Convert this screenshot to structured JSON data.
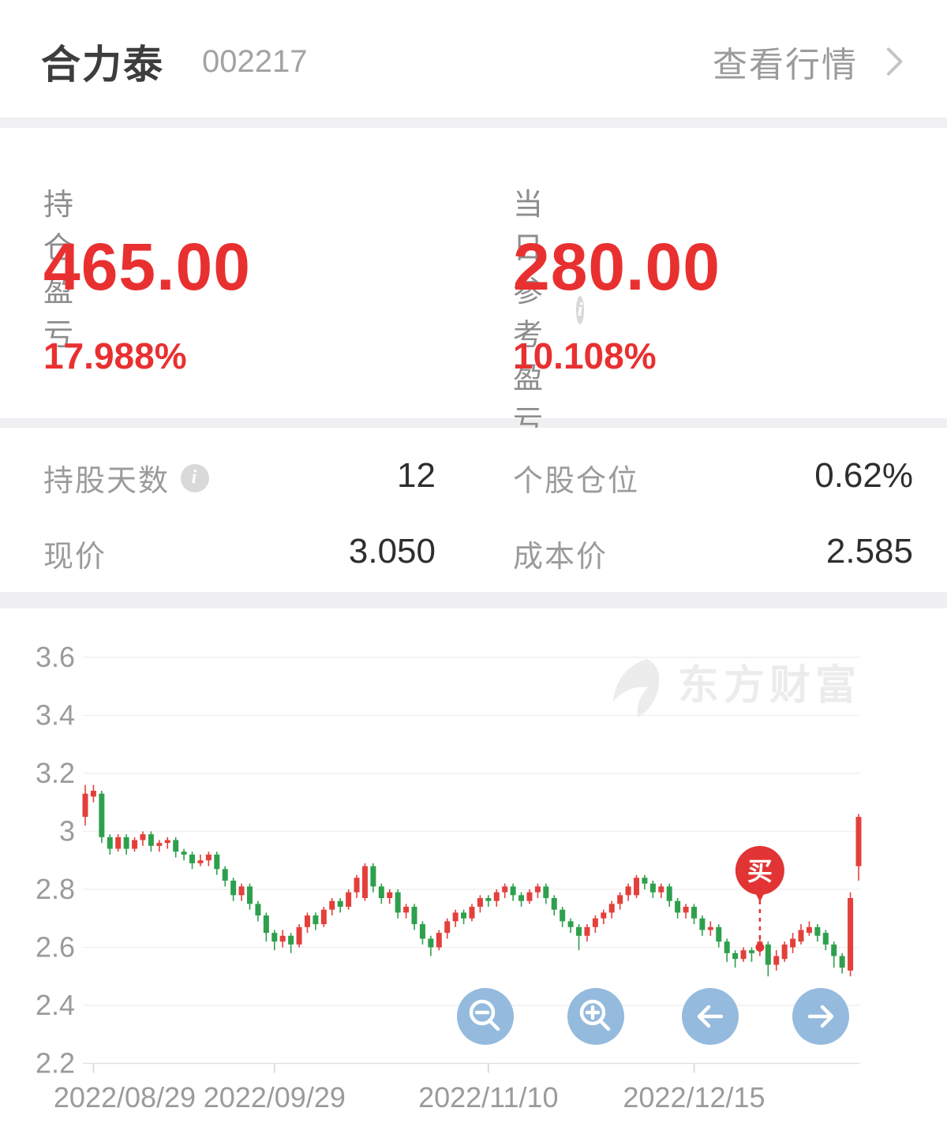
{
  "header": {
    "stock_name": "合力泰",
    "stock_code": "002217",
    "view_quotes_label": "查看行情"
  },
  "icons": {
    "view_quotes_chevron": "chevron-right",
    "info": "info-circle",
    "watermark_logo": "eastmoney-logo",
    "buttons": [
      "magnifier-minus",
      "magnifier-plus",
      "arrow-left",
      "arrow-right"
    ]
  },
  "pnl": {
    "position_label": "持仓盈亏",
    "position_value": "465.00",
    "position_pct": "17.988%",
    "today_label": "当日参考盈亏",
    "today_value": "280.00",
    "today_pct": "10.108%",
    "info_glyph": "i"
  },
  "stats": {
    "holding_days_label": "持股天数",
    "holding_days_value": "12",
    "weight_label": "个股仓位",
    "weight_value": "0.62%",
    "price_label": "现价",
    "price_value": "3.050",
    "cost_label": "成本价",
    "cost_value": "2.585",
    "info_glyph": "i"
  },
  "chart_data": {
    "type": "candlestick",
    "watermark": "东方财富",
    "ylim": [
      2.2,
      3.7
    ],
    "yticks": [
      3.6,
      3.4,
      3.2,
      3,
      2.8,
      2.6,
      2.4,
      2.2
    ],
    "ytick_labels": [
      "3.6",
      "3.4",
      "3.2",
      "3",
      "2.8",
      "2.6",
      "2.4",
      "2.2"
    ],
    "xticks": [
      {
        "index": 1,
        "label": "2022/08/29"
      },
      {
        "index": 23,
        "label": "2022/09/29"
      },
      {
        "index": 49,
        "label": "2022/11/10"
      },
      {
        "index": 74,
        "label": "2022/12/15"
      }
    ],
    "buy_marker": {
      "index": 82,
      "price": 2.6,
      "label": "买"
    },
    "grid": true,
    "legend": "none",
    "colors": {
      "up": "#e3403c",
      "down": "#2ea04d",
      "grid": "#f1f1f1",
      "axis": "#e3e3e3",
      "tick_text": "#9b9b9b",
      "watermark": "#ececec",
      "buy": "#e23434",
      "accent_red": "#e93030",
      "button_blue": "#8fb7dc"
    },
    "candles": [
      [
        3.05,
        3.16,
        3.02,
        3.13
      ],
      [
        3.12,
        3.16,
        3.1,
        3.14
      ],
      [
        3.13,
        3.14,
        2.96,
        2.98
      ],
      [
        2.98,
        2.99,
        2.92,
        2.94
      ],
      [
        2.94,
        2.99,
        2.93,
        2.98
      ],
      [
        2.98,
        2.99,
        2.92,
        2.94
      ],
      [
        2.94,
        2.98,
        2.93,
        2.97
      ],
      [
        2.97,
        3.0,
        2.95,
        2.99
      ],
      [
        2.99,
        3.0,
        2.93,
        2.95
      ],
      [
        2.95,
        2.97,
        2.93,
        2.96
      ],
      [
        2.96,
        2.98,
        2.94,
        2.97
      ],
      [
        2.97,
        2.98,
        2.91,
        2.93
      ],
      [
        2.93,
        2.94,
        2.9,
        2.92
      ],
      [
        2.92,
        2.93,
        2.87,
        2.89
      ],
      [
        2.89,
        2.92,
        2.88,
        2.9
      ],
      [
        2.9,
        2.93,
        2.88,
        2.92
      ],
      [
        2.92,
        2.93,
        2.85,
        2.87
      ],
      [
        2.87,
        2.88,
        2.81,
        2.83
      ],
      [
        2.83,
        2.84,
        2.76,
        2.78
      ],
      [
        2.78,
        2.82,
        2.76,
        2.81
      ],
      [
        2.81,
        2.82,
        2.73,
        2.75
      ],
      [
        2.75,
        2.76,
        2.69,
        2.71
      ],
      [
        2.71,
        2.72,
        2.62,
        2.65
      ],
      [
        2.65,
        2.66,
        2.59,
        2.62
      ],
      [
        2.62,
        2.66,
        2.6,
        2.64
      ],
      [
        2.64,
        2.65,
        2.58,
        2.61
      ],
      [
        2.61,
        2.68,
        2.6,
        2.67
      ],
      [
        2.67,
        2.72,
        2.65,
        2.71
      ],
      [
        2.71,
        2.72,
        2.66,
        2.68
      ],
      [
        2.68,
        2.74,
        2.67,
        2.73
      ],
      [
        2.73,
        2.77,
        2.71,
        2.76
      ],
      [
        2.76,
        2.77,
        2.72,
        2.74
      ],
      [
        2.74,
        2.8,
        2.73,
        2.79
      ],
      [
        2.79,
        2.85,
        2.77,
        2.84
      ],
      [
        2.77,
        2.89,
        2.76,
        2.88
      ],
      [
        2.88,
        2.89,
        2.79,
        2.81
      ],
      [
        2.81,
        2.82,
        2.75,
        2.77
      ],
      [
        2.77,
        2.8,
        2.75,
        2.79
      ],
      [
        2.79,
        2.8,
        2.7,
        2.72
      ],
      [
        2.72,
        2.75,
        2.7,
        2.74
      ],
      [
        2.74,
        2.75,
        2.66,
        2.68
      ],
      [
        2.68,
        2.69,
        2.61,
        2.63
      ],
      [
        2.63,
        2.64,
        2.57,
        2.6
      ],
      [
        2.6,
        2.66,
        2.59,
        2.65
      ],
      [
        2.65,
        2.7,
        2.63,
        2.69
      ],
      [
        2.69,
        2.73,
        2.67,
        2.72
      ],
      [
        2.72,
        2.73,
        2.68,
        2.7
      ],
      [
        2.7,
        2.75,
        2.69,
        2.74
      ],
      [
        2.74,
        2.78,
        2.72,
        2.77
      ],
      [
        2.77,
        2.78,
        2.74,
        2.76
      ],
      [
        2.76,
        2.8,
        2.74,
        2.79
      ],
      [
        2.79,
        2.82,
        2.77,
        2.81
      ],
      [
        2.81,
        2.82,
        2.76,
        2.78
      ],
      [
        2.78,
        2.79,
        2.74,
        2.76
      ],
      [
        2.76,
        2.8,
        2.75,
        2.79
      ],
      [
        2.79,
        2.82,
        2.77,
        2.81
      ],
      [
        2.81,
        2.82,
        2.75,
        2.77
      ],
      [
        2.77,
        2.78,
        2.71,
        2.73
      ],
      [
        2.73,
        2.74,
        2.67,
        2.69
      ],
      [
        2.69,
        2.7,
        2.65,
        2.67
      ],
      [
        2.67,
        2.68,
        2.59,
        2.64
      ],
      [
        2.64,
        2.68,
        2.62,
        2.67
      ],
      [
        2.67,
        2.71,
        2.65,
        2.7
      ],
      [
        2.7,
        2.73,
        2.68,
        2.72
      ],
      [
        2.72,
        2.76,
        2.7,
        2.75
      ],
      [
        2.75,
        2.79,
        2.73,
        2.78
      ],
      [
        2.78,
        2.82,
        2.76,
        2.81
      ],
      [
        2.78,
        2.85,
        2.77,
        2.84
      ],
      [
        2.84,
        2.85,
        2.8,
        2.82
      ],
      [
        2.82,
        2.83,
        2.77,
        2.79
      ],
      [
        2.79,
        2.82,
        2.77,
        2.81
      ],
      [
        2.81,
        2.82,
        2.74,
        2.76
      ],
      [
        2.76,
        2.77,
        2.7,
        2.72
      ],
      [
        2.72,
        2.75,
        2.7,
        2.74
      ],
      [
        2.74,
        2.75,
        2.68,
        2.7
      ],
      [
        2.7,
        2.71,
        2.64,
        2.66
      ],
      [
        2.66,
        2.69,
        2.64,
        2.67
      ],
      [
        2.67,
        2.68,
        2.6,
        2.62
      ],
      [
        2.62,
        2.63,
        2.55,
        2.58
      ],
      [
        2.58,
        2.59,
        2.53,
        2.56
      ],
      [
        2.56,
        2.6,
        2.55,
        2.59
      ],
      [
        2.59,
        2.6,
        2.55,
        2.58
      ],
      [
        2.59,
        2.64,
        2.57,
        2.62
      ],
      [
        2.61,
        2.62,
        2.5,
        2.54
      ],
      [
        2.54,
        2.59,
        2.52,
        2.57
      ],
      [
        2.56,
        2.62,
        2.55,
        2.61
      ],
      [
        2.6,
        2.65,
        2.58,
        2.63
      ],
      [
        2.62,
        2.68,
        2.61,
        2.66
      ],
      [
        2.65,
        2.69,
        2.64,
        2.67
      ],
      [
        2.67,
        2.68,
        2.62,
        2.64
      ],
      [
        2.65,
        2.66,
        2.59,
        2.61
      ],
      [
        2.61,
        2.62,
        2.53,
        2.57
      ],
      [
        2.57,
        2.58,
        2.51,
        2.53
      ],
      [
        2.52,
        2.79,
        2.5,
        2.77
      ],
      [
        2.88,
        3.06,
        2.83,
        3.05
      ]
    ]
  }
}
